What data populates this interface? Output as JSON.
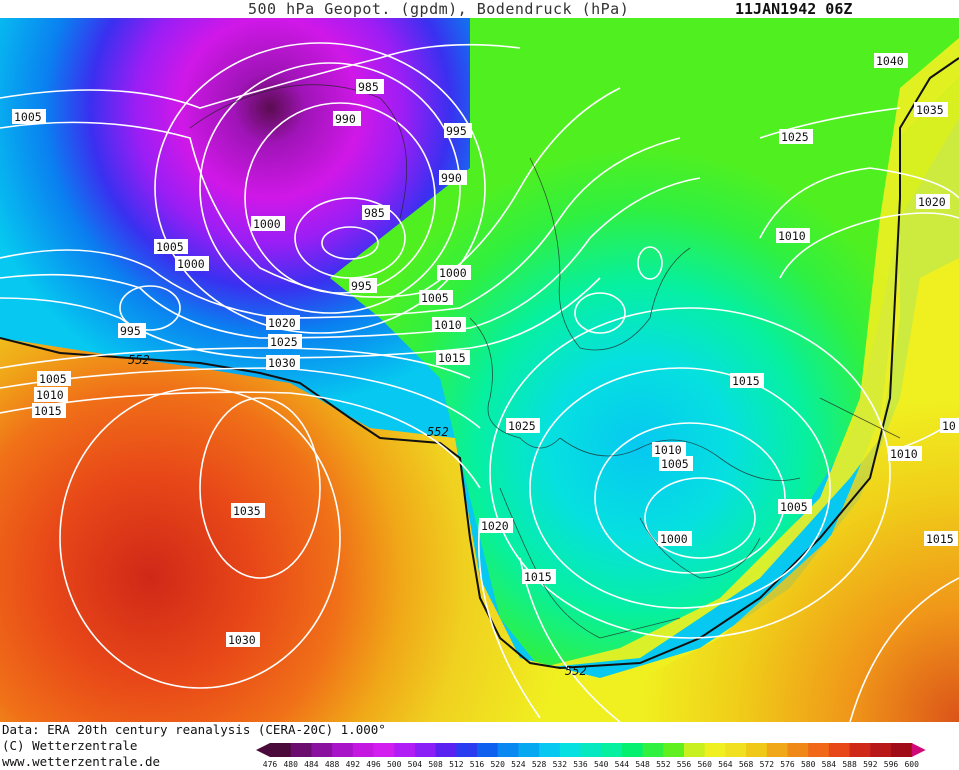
{
  "header": {
    "title": "500 hPa Geopot. (gpdm), Bodendruck (hPa)",
    "date": "11JAN1942 06Z"
  },
  "footer": {
    "data_source": "Data: ERA 20th century reanalysis (CERA-20C) 1.000°",
    "copyright": "(C) Wetterzentrale",
    "website": "www.wetterzentrale.de"
  },
  "colorbar": {
    "labels": [
      "476",
      "480",
      "484",
      "488",
      "492",
      "496",
      "500",
      "504",
      "508",
      "512",
      "516",
      "520",
      "524",
      "528",
      "532",
      "536",
      "540",
      "544",
      "548",
      "552",
      "556",
      "560",
      "564",
      "568",
      "572",
      "576",
      "580",
      "584",
      "588",
      "592",
      "596",
      "600"
    ],
    "colors": [
      "#4a0a3a",
      "#6b0d6e",
      "#8a10a0",
      "#a814c8",
      "#c418e0",
      "#d31ef0",
      "#b01ef5",
      "#8a20f5",
      "#5a22f0",
      "#2a3cf0",
      "#1060f0",
      "#0888f0",
      "#06a8f0",
      "#06c8f0",
      "#06e0e0",
      "#06e8c0",
      "#06f0a0",
      "#06f070",
      "#30f040",
      "#60f020",
      "#c8f020",
      "#f0f020",
      "#f0e020",
      "#f0c818",
      "#f0a818",
      "#f08818",
      "#f06818",
      "#e84818",
      "#d02818",
      "#b81818",
      "#a00c18",
      "#d00878"
    ]
  },
  "map": {
    "geopotential_contour_labels": [
      "552",
      "552",
      "552"
    ],
    "pressure_labels": [
      "1005",
      "1040",
      "1035",
      "1020",
      "985",
      "990",
      "995",
      "990",
      "985",
      "1000",
      "1005",
      "1000",
      "995",
      "995",
      "1000",
      "1005",
      "1010",
      "1015",
      "1020",
      "1025",
      "1030",
      "1005",
      "1010",
      "1015",
      "552",
      "1025",
      "1025",
      "1010",
      "1015",
      "1010",
      "1005",
      "1010",
      "1005",
      "1035",
      "1020",
      "1000",
      "1005",
      "1015",
      "1015",
      "1030",
      "1015",
      "10"
    ]
  }
}
